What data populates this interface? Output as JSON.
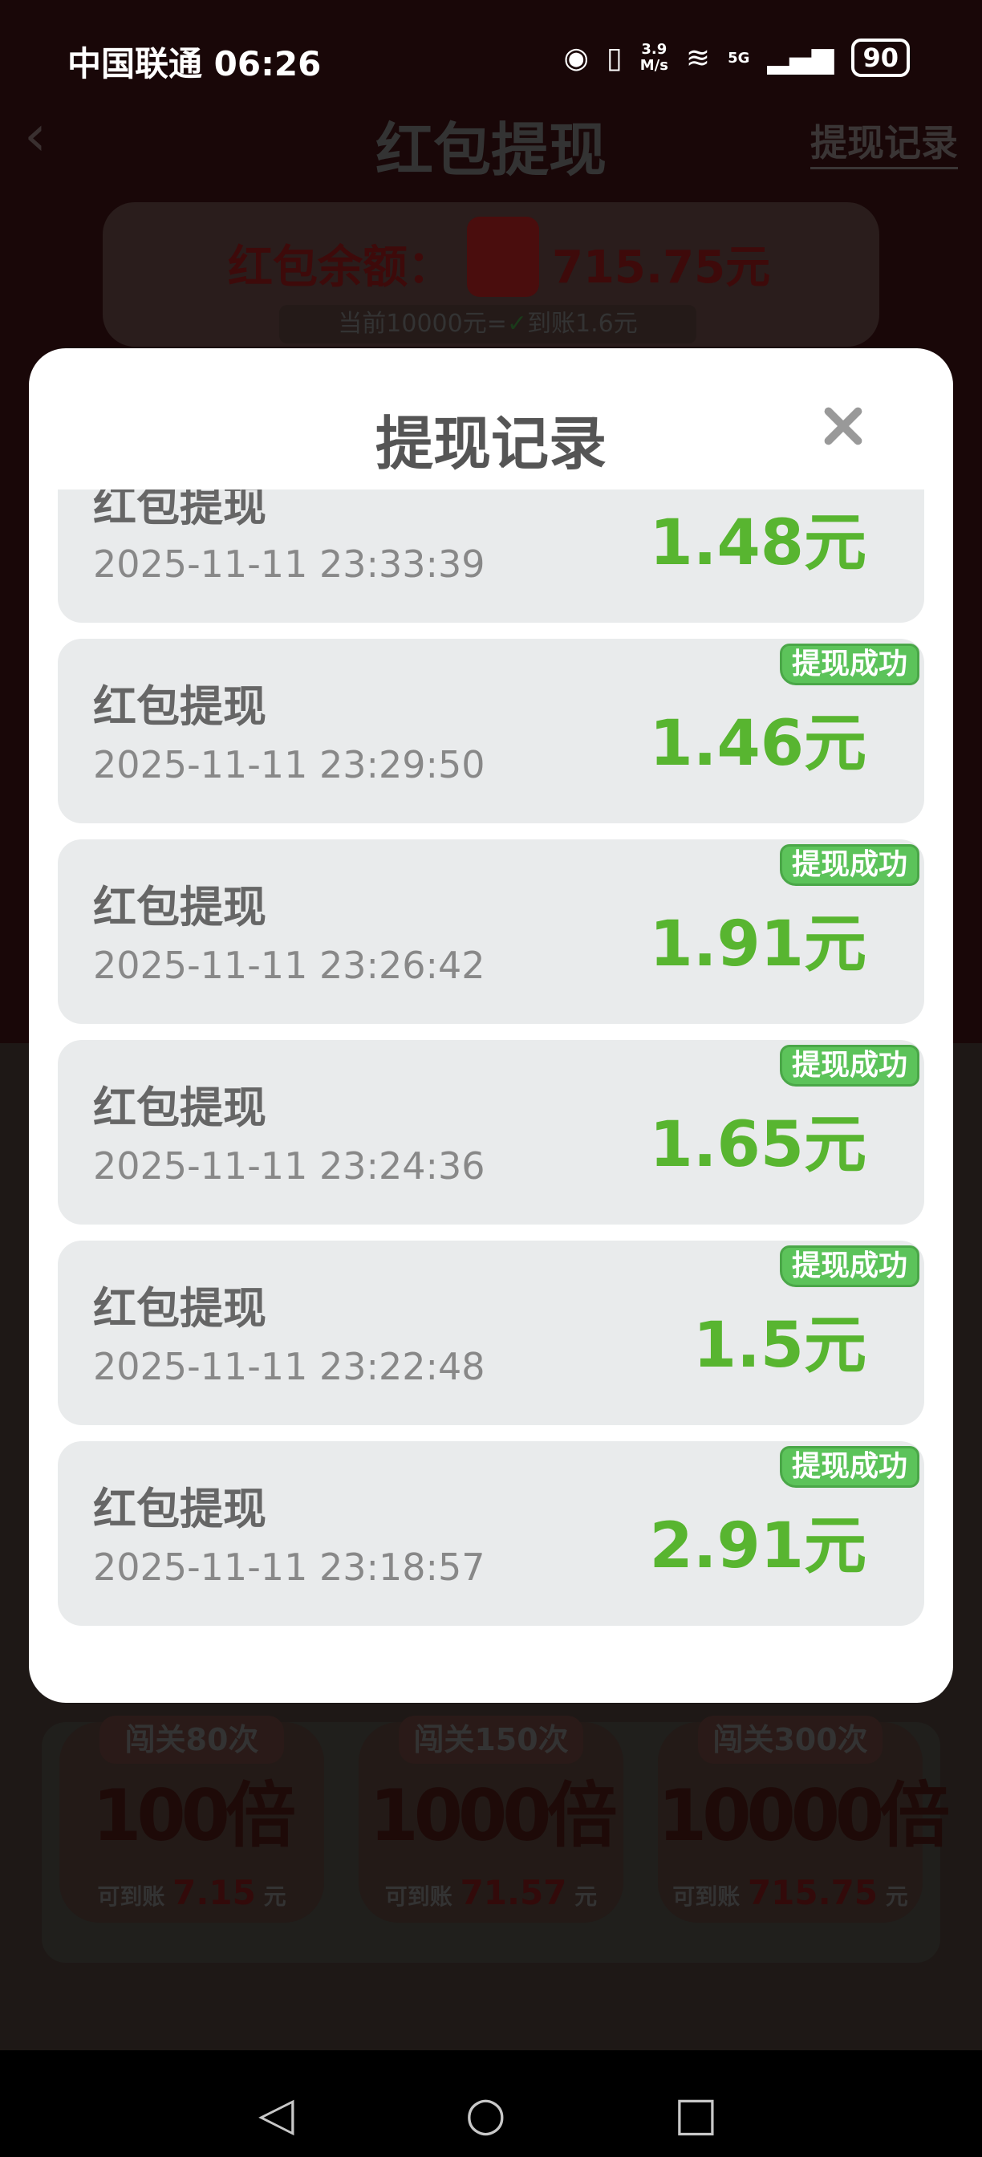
{
  "status_bar": {
    "carrier_time": "中国联通 06:26",
    "net_speed_value": "3.9",
    "net_speed_unit": "M/s",
    "network": "5G",
    "battery": "90"
  },
  "header": {
    "title": "红包提现",
    "records_link": "提现记录"
  },
  "balance": {
    "label": "红包余额：",
    "amount": "715.75元",
    "rate_prefix": "当前10000元=",
    "rate_suffix": "到账1.6元"
  },
  "levels": [
    {
      "tag": "闯关80次",
      "mult": "100倍",
      "sub_label": "可到账",
      "amount": "7.15",
      "unit": "元"
    },
    {
      "tag": "闯关150次",
      "mult": "1000倍",
      "sub_label": "可到账",
      "amount": "71.57",
      "unit": "元"
    },
    {
      "tag": "闯关300次",
      "mult": "10000倍",
      "sub_label": "可到账",
      "amount": "715.75",
      "unit": "元"
    }
  ],
  "modal": {
    "title": "提现记录",
    "records": [
      {
        "title": "红包提现",
        "date": "2025-11-11 23:33:39",
        "amount": "1.48元"
      },
      {
        "title": "红包提现",
        "date": "2025-11-11 23:29:50",
        "amount": "1.46元",
        "badge": "提现成功"
      },
      {
        "title": "红包提现",
        "date": "2025-11-11 23:26:42",
        "amount": "1.91元",
        "badge": "提现成功"
      },
      {
        "title": "红包提现",
        "date": "2025-11-11 23:24:36",
        "amount": "1.65元",
        "badge": "提现成功"
      },
      {
        "title": "红包提现",
        "date": "2025-11-11 23:22:48",
        "amount": "1.5元",
        "badge": "提现成功"
      },
      {
        "title": "红包提现",
        "date": "2025-11-11 23:18:57",
        "amount": "2.91元",
        "badge": "提现成功"
      }
    ]
  },
  "colors": {
    "amount_green": "#58b530",
    "badge_green": "#5cc35a",
    "card_bg": "#e9ebec"
  },
  "icons": {
    "eye": "eye-icon",
    "vibrate": "vibrate-icon",
    "wifi": "wifi-icon",
    "signal": "signal-icon",
    "close": "close-icon",
    "back": "chevron-left-icon"
  }
}
